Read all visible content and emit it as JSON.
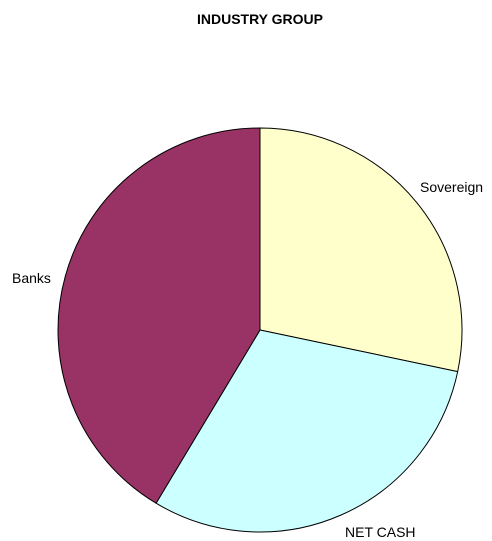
{
  "chart_data": {
    "type": "pie",
    "title": "INDUSTRY GROUP",
    "start_angle_deg": 0,
    "direction": "clockwise",
    "slices": [
      {
        "label": "Sovereign",
        "value": 28.3,
        "color": "#FFFFCC"
      },
      {
        "label": "NET CASH",
        "value": 30.3,
        "color": "#CCFFFF"
      },
      {
        "label": "Banks",
        "value": 41.4,
        "color": "#993366"
      }
    ],
    "legend": "none"
  }
}
